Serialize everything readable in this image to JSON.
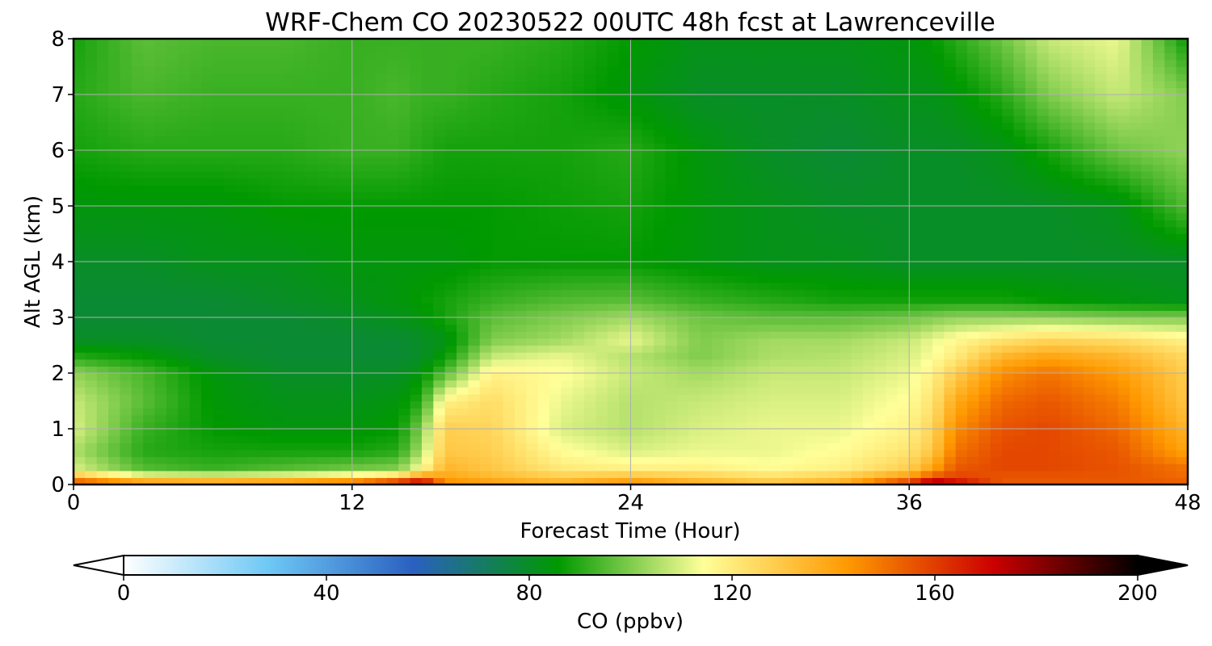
{
  "chart_data": {
    "type": "heatmap",
    "title": "WRF-Chem CO  20230522 00UTC 48h fcst at Lawrenceville",
    "xlabel": "Forecast Time (Hour)",
    "ylabel": "Alt AGL (km)",
    "xlim": [
      0,
      48
    ],
    "ylim": [
      0,
      8
    ],
    "xticks": [
      "0",
      "12",
      "24",
      "36",
      "48"
    ],
    "yticks": [
      "0",
      "1",
      "2",
      "3",
      "4",
      "5",
      "6",
      "7",
      "8"
    ],
    "grid": true,
    "x": [
      0,
      3,
      6,
      9,
      12,
      14,
      15,
      16,
      18,
      21,
      24,
      27,
      30,
      33,
      36,
      37,
      38,
      40,
      42,
      45,
      48
    ],
    "y": [
      0,
      0.1,
      0.3,
      0.6,
      1.0,
      1.5,
      2.0,
      2.3,
      2.6,
      3.0,
      3.3,
      4.0,
      5.0,
      6.0,
      7.0,
      8.0
    ],
    "z": [
      [
        170,
        165,
        165,
        168,
        175,
        190,
        195,
        150,
        145,
        140,
        150,
        140,
        135,
        140,
        175,
        195,
        180,
        155,
        155,
        155,
        155
      ],
      [
        140,
        120,
        118,
        120,
        125,
        135,
        150,
        140,
        135,
        130,
        135,
        130,
        125,
        130,
        145,
        160,
        160,
        155,
        155,
        155,
        152
      ],
      [
        110,
        95,
        92,
        95,
        98,
        100,
        115,
        135,
        130,
        120,
        118,
        118,
        115,
        118,
        128,
        140,
        155,
        158,
        158,
        156,
        150
      ],
      [
        105,
        90,
        88,
        88,
        88,
        90,
        105,
        130,
        128,
        115,
        110,
        112,
        112,
        115,
        122,
        130,
        150,
        158,
        158,
        155,
        140
      ],
      [
        110,
        92,
        86,
        84,
        84,
        86,
        100,
        128,
        126,
        110,
        106,
        110,
        112,
        112,
        118,
        126,
        145,
        156,
        158,
        152,
        135
      ],
      [
        108,
        96,
        85,
        82,
        82,
        84,
        90,
        118,
        124,
        112,
        106,
        108,
        110,
        110,
        115,
        122,
        138,
        152,
        155,
        148,
        130
      ],
      [
        102,
        94,
        84,
        80,
        80,
        80,
        84,
        95,
        118,
        115,
        108,
        104,
        108,
        108,
        112,
        118,
        128,
        145,
        150,
        142,
        128
      ],
      [
        90,
        86,
        80,
        78,
        78,
        78,
        80,
        86,
        108,
        112,
        106,
        100,
        105,
        106,
        110,
        114,
        120,
        135,
        140,
        135,
        125
      ],
      [
        80,
        80,
        78,
        78,
        78,
        78,
        80,
        82,
        100,
        104,
        112,
        100,
        104,
        104,
        108,
        112,
        116,
        122,
        126,
        124,
        118
      ],
      [
        78,
        78,
        78,
        78,
        80,
        82,
        84,
        88,
        96,
        100,
        104,
        98,
        96,
        96,
        98,
        100,
        102,
        102,
        102,
        100,
        100
      ],
      [
        78,
        78,
        78,
        80,
        82,
        84,
        86,
        88,
        92,
        95,
        96,
        92,
        90,
        88,
        88,
        88,
        88,
        88,
        86,
        84,
        82
      ],
      [
        80,
        80,
        82,
        82,
        84,
        84,
        84,
        84,
        86,
        86,
        86,
        84,
        82,
        82,
        80,
        80,
        80,
        80,
        80,
        80,
        80
      ],
      [
        84,
        84,
        84,
        86,
        86,
        86,
        86,
        86,
        86,
        87,
        88,
        84,
        82,
        80,
        80,
        80,
        80,
        80,
        80,
        82,
        95
      ],
      [
        88,
        90,
        90,
        90,
        92,
        92,
        90,
        88,
        88,
        88,
        90,
        84,
        80,
        78,
        80,
        80,
        80,
        82,
        88,
        98,
        102
      ],
      [
        90,
        94,
        92,
        92,
        92,
        94,
        92,
        92,
        90,
        88,
        84,
        80,
        80,
        80,
        82,
        82,
        84,
        90,
        100,
        108,
        100
      ],
      [
        88,
        96,
        94,
        94,
        92,
        92,
        92,
        92,
        92,
        90,
        86,
        82,
        82,
        82,
        84,
        86,
        90,
        98,
        108,
        112,
        86
      ]
    ],
    "colorbar": {
      "label": "CO  (ppbv)",
      "min": 0,
      "max": 200,
      "ticks": [
        "0",
        "40",
        "80",
        "120",
        "160",
        "200"
      ],
      "extend": "both",
      "colors": [
        "#ffffff",
        "#6ec8f5",
        "#2a60c0",
        "#009900",
        "#ffff99",
        "#ff9900",
        "#cc0000",
        "#000000"
      ]
    }
  }
}
